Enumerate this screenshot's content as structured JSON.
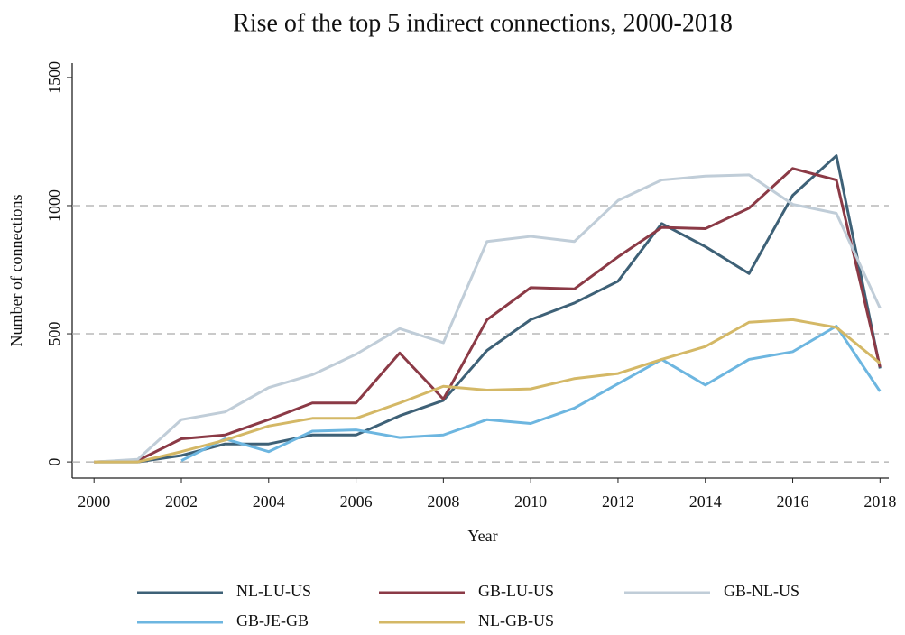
{
  "chart_data": {
    "type": "line",
    "title": "Rise of the top 5 indirect connections, 2000-2018",
    "x_label": "Year",
    "y_label": "Number of connections",
    "x": [
      2000,
      2001,
      2002,
      2003,
      2004,
      2005,
      2006,
      2007,
      2008,
      2009,
      2010,
      2011,
      2012,
      2013,
      2014,
      2015,
      2016,
      2017,
      2018
    ],
    "xlim": [
      1999.5,
      2018.2
    ],
    "xticks": [
      2000,
      2002,
      2004,
      2006,
      2008,
      2010,
      2012,
      2014,
      2016,
      2018
    ],
    "ylim": [
      -63,
      1556
    ],
    "yticks": [
      0,
      500,
      1000,
      1500
    ],
    "ygrid": [
      0,
      500,
      1000
    ],
    "series": [
      {
        "name": "NL-LU-US",
        "color": "#3e6177",
        "values": [
          0,
          0,
          25,
          70,
          70,
          105,
          105,
          180,
          240,
          435,
          555,
          620,
          705,
          930,
          840,
          735,
          1040,
          1195,
          365
        ]
      },
      {
        "name": "GB-LU-US",
        "color": "#8b3a46",
        "values": [
          0,
          5,
          90,
          105,
          165,
          230,
          230,
          425,
          245,
          555,
          680,
          675,
          800,
          915,
          910,
          990,
          1145,
          1100,
          370
        ]
      },
      {
        "name": "GB-NL-US",
        "color": "#c0cdd8",
        "values": [
          0,
          10,
          165,
          195,
          290,
          340,
          420,
          520,
          465,
          860,
          880,
          860,
          1020,
          1100,
          1115,
          1120,
          1005,
          970,
          600
        ]
      },
      {
        "name": "GB-JE-GB",
        "color": "#6db6e0",
        "values": [
          null,
          null,
          5,
          90,
          40,
          120,
          125,
          95,
          105,
          165,
          150,
          210,
          305,
          400,
          300,
          400,
          430,
          530,
          275
        ]
      },
      {
        "name": "NL-GB-US",
        "color": "#d4b866",
        "values": [
          0,
          0,
          40,
          85,
          140,
          170,
          170,
          230,
          295,
          280,
          285,
          325,
          345,
          400,
          450,
          545,
          555,
          525,
          385
        ]
      }
    ]
  }
}
